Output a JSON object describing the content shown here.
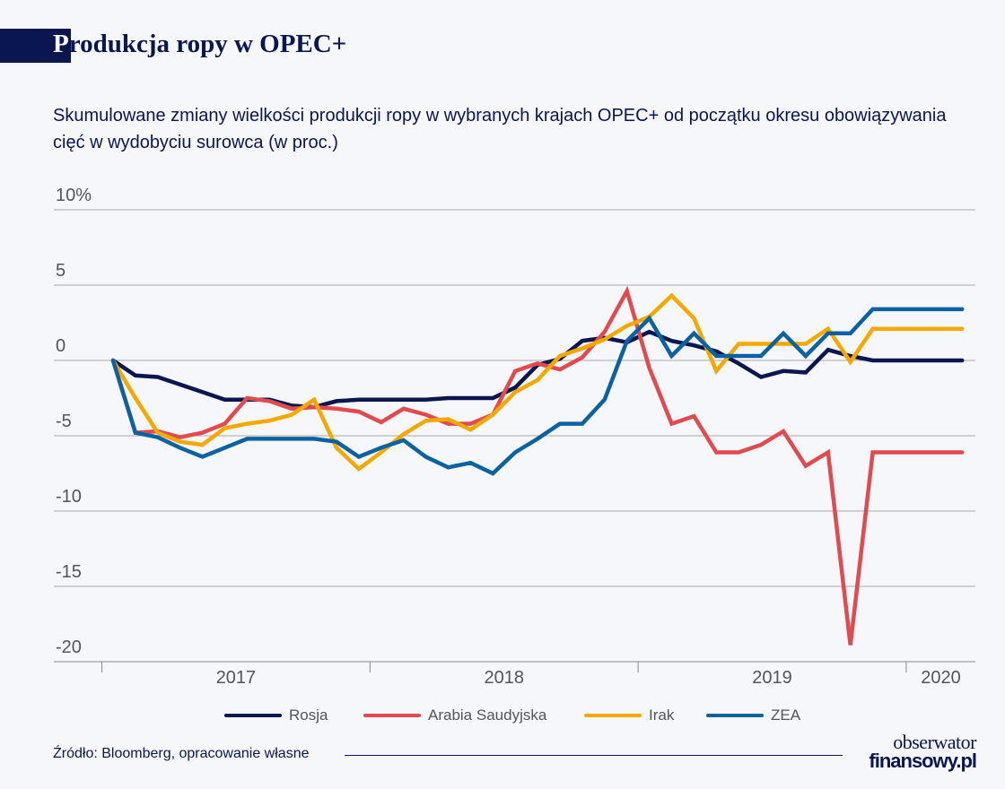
{
  "header": {
    "title_first_letter": "P",
    "title_rest": "rodukcja ropy w OPEC+",
    "subtitle": "Skumulowane zmiany wielkości produkcji ropy w wybranych krajach OPEC+ od początku okresu obowiązywania cięć w wydobyciu surowca (w proc.)"
  },
  "chart_data": {
    "type": "line",
    "title": "Produkcja ropy w OPEC+",
    "subtitle": "Skumulowane zmiany wielkości produkcji ropy w wybranych krajach OPEC+ od początku okresu obowiązywania cięć w wydobyciu surowca (w proc.)",
    "xlabel": "",
    "ylabel": "",
    "ylim": [
      -20,
      10
    ],
    "y_ticks": [
      10,
      5,
      0,
      -5,
      -10,
      -15,
      -20
    ],
    "y_tick_labels": [
      "10%",
      "5",
      "0",
      "-5",
      "-10",
      "-15",
      "-20"
    ],
    "x_tick_labels": [
      "2017",
      "2018",
      "2019",
      "2020"
    ],
    "grid": true,
    "legend_position": "bottom",
    "x": [
      "2017-01",
      "2017-02",
      "2017-03",
      "2017-04",
      "2017-05",
      "2017-06",
      "2017-07",
      "2017-08",
      "2017-09",
      "2017-10",
      "2017-11",
      "2017-12",
      "2018-01",
      "2018-02",
      "2018-03",
      "2018-04",
      "2018-05",
      "2018-06",
      "2018-07",
      "2018-08",
      "2018-09",
      "2018-10",
      "2018-11",
      "2018-12",
      "2019-01",
      "2019-02",
      "2019-03",
      "2019-04",
      "2019-05",
      "2019-06",
      "2019-07",
      "2019-08",
      "2019-09",
      "2019-10",
      "2019-11",
      "2019-12",
      "2020-01",
      "2020-02",
      "2020-03"
    ],
    "series": [
      {
        "name": "Rosja",
        "color": "#0a1650",
        "values": [
          0,
          -1.0,
          -1.1,
          -1.6,
          -2.1,
          -2.6,
          -2.6,
          -2.6,
          -3.0,
          -3.1,
          -2.7,
          -2.6,
          -2.6,
          -2.6,
          -2.6,
          -2.5,
          -2.5,
          -2.5,
          -1.8,
          -0.3,
          0.1,
          1.3,
          1.5,
          1.2,
          1.9,
          1.3,
          1.0,
          0.6,
          -0.2,
          -1.1,
          -0.7,
          -0.8,
          0.7,
          0.3,
          0,
          0,
          0,
          0,
          0
        ]
      },
      {
        "name": "Arabia Saudyjska",
        "color": "#e04b50",
        "values": [
          0,
          -4.8,
          -4.7,
          -5.1,
          -4.8,
          -4.2,
          -2.5,
          -2.7,
          -3.2,
          -3.1,
          -3.2,
          -3.4,
          -4.1,
          -3.2,
          -3.6,
          -4.2,
          -4.2,
          -3.6,
          -0.7,
          -0.2,
          -0.6,
          0.2,
          1.9,
          4.6,
          -0.5,
          -4.2,
          -3.7,
          -6.1,
          -6.1,
          -5.6,
          -4.7,
          -7.0,
          -6.1,
          -18.9,
          -6.1,
          -6.1,
          -6.1,
          -6.1,
          -6.1
        ]
      },
      {
        "name": "Irak",
        "color": "#f5a800",
        "values": [
          0,
          -2.5,
          -4.8,
          -5.4,
          -5.6,
          -4.5,
          -4.2,
          -4.0,
          -3.6,
          -2.6,
          -5.8,
          -7.2,
          -6.1,
          -4.9,
          -4.0,
          -3.9,
          -4.6,
          -3.6,
          -2.1,
          -1.3,
          0.3,
          0.8,
          1.4,
          2.3,
          2.9,
          4.3,
          2.8,
          -0.7,
          1.1,
          1.1,
          1.1,
          1.1,
          2.1,
          -0.1,
          2.1,
          2.1,
          2.1,
          2.1,
          2.1
        ]
      },
      {
        "name": "ZEA",
        "color": "#0a63a0",
        "values": [
          0,
          -4.8,
          -5.1,
          -5.8,
          -6.4,
          -5.8,
          -5.2,
          -5.2,
          -5.2,
          -5.2,
          -5.4,
          -6.4,
          -5.8,
          -5.3,
          -6.4,
          -7.1,
          -6.8,
          -7.5,
          -6.1,
          -5.2,
          -4.2,
          -4.2,
          -2.6,
          1.3,
          2.8,
          0.3,
          1.8,
          0.3,
          0.3,
          0.3,
          1.8,
          0.3,
          1.8,
          1.8,
          3.4,
          3.4,
          3.4,
          3.4,
          3.4
        ]
      }
    ]
  },
  "footer": {
    "source": "Źródło: Bloomberg, opracowanie własne",
    "logo_line1": "obserwator",
    "logo_line2": "finansowy.pl"
  }
}
